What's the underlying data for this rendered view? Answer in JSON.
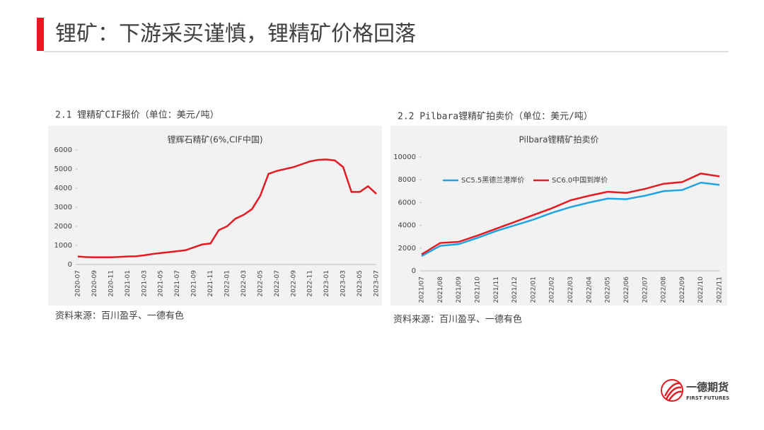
{
  "header": {
    "title": "锂矿：下游采买谨慎，锂精矿价格回落"
  },
  "chart_data": [
    {
      "type": "line",
      "section_title": "2.1 锂精矿CIF报价（单位：美元/吨）",
      "title": "锂辉石精矿(6%,CIF中国)",
      "categories": [
        "2020-07",
        null,
        "2020-09",
        null,
        "2020-11",
        null,
        "2021-01",
        null,
        "2021-03",
        null,
        "2021-05",
        null,
        "2021-07",
        null,
        "2021-09",
        null,
        "2021-11",
        null,
        "2022-01",
        null,
        "2022-03",
        null,
        "2022-05",
        null,
        "2022-07",
        null,
        "2022-09",
        null,
        "2022-11",
        null,
        "2023-01",
        null,
        "2023-03",
        null,
        "2023-05",
        null,
        "2023-07"
      ],
      "series": [
        {
          "name": null,
          "color": "#e31b23",
          "values": [
            420,
            390,
            380,
            380,
            380,
            400,
            420,
            430,
            480,
            550,
            600,
            650,
            700,
            750,
            900,
            1050,
            1100,
            1800,
            2000,
            2400,
            2600,
            2900,
            3600,
            4750,
            4900,
            5000,
            5100,
            5250,
            5400,
            5480,
            5500,
            5450,
            5100,
            3800,
            3800,
            4100,
            3700
          ]
        }
      ],
      "ylim": [
        0,
        6000
      ],
      "yticks": [
        0,
        1000,
        2000,
        3000,
        4000,
        5000,
        6000
      ],
      "grid": false,
      "source": "资料来源：百川盈孚、一德有色"
    },
    {
      "type": "line",
      "section_title": "2.2 Pilbara锂精矿拍卖价（单位：美元/吨）",
      "title": "Pilbara锂精矿拍卖价",
      "categories": [
        "2021/07",
        "2021/08",
        "2021/09",
        "2021/10",
        "2021/11",
        "2021/12",
        "2022/01",
        "2022/02",
        "2022/03",
        "2022/04",
        "2022/05",
        "2022/06",
        "2022/07",
        "2022/08",
        "2022/09",
        "2022/10",
        "2022/11"
      ],
      "series": [
        {
          "name": "SC5.5黑德兰港岸价",
          "color": "#1ea5e0",
          "values": [
            1300,
            2200,
            2350,
            2900,
            3500,
            4000,
            4500,
            5100,
            5600,
            6000,
            6350,
            6300,
            6600,
            7000,
            7100,
            7750,
            7550
          ]
        },
        {
          "name": "SC6.0中国到岸价",
          "color": "#e31b23",
          "values": [
            1450,
            2450,
            2550,
            3100,
            3700,
            4300,
            4900,
            5500,
            6200,
            6600,
            6950,
            6850,
            7200,
            7650,
            7800,
            8550,
            8300
          ]
        }
      ],
      "ylim": [
        0,
        10000
      ],
      "yticks": [
        0,
        2000,
        4000,
        6000,
        8000,
        10000
      ],
      "grid": false,
      "legend": "top-left",
      "source": "资料来源：百川盈孚、一德有色"
    }
  ],
  "logo": {
    "name": "一德期货",
    "english": "FIRST FUTURES"
  }
}
